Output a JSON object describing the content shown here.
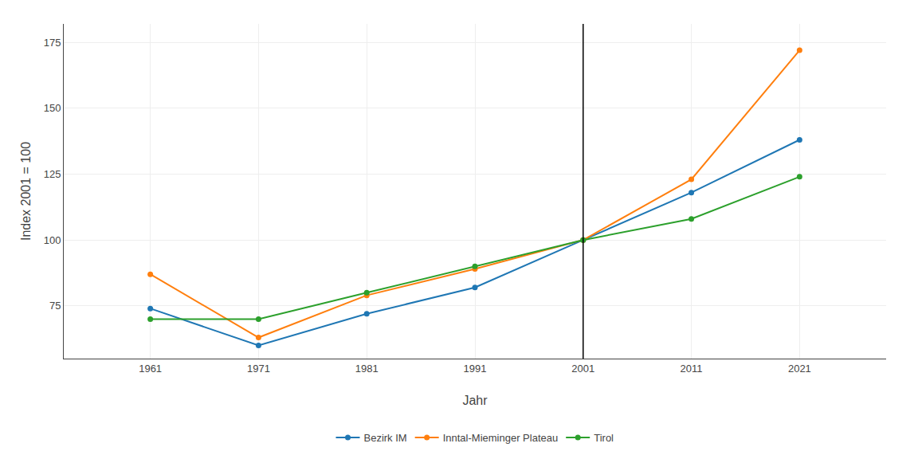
{
  "chart_data": {
    "type": "line",
    "x": [
      1961,
      1971,
      1981,
      1991,
      2001,
      2011,
      2021
    ],
    "series": [
      {
        "name": "Bezirk IM",
        "values": [
          74,
          60,
          72,
          82,
          100,
          118,
          138
        ]
      },
      {
        "name": "Inntal-Mieminger Plateau",
        "values": [
          87,
          63,
          79,
          89,
          100,
          123,
          172
        ]
      },
      {
        "name": "Tirol",
        "values": [
          70,
          70,
          80,
          90,
          100,
          108,
          124
        ]
      }
    ],
    "xlabel": "Jahr",
    "ylabel": "Index 2001 = 100",
    "xlim": [
      1953,
      2029
    ],
    "xticks": [
      1961,
      1971,
      1981,
      1991,
      2001,
      2011,
      2021
    ],
    "ylim": [
      55,
      182
    ],
    "yticks": [
      75,
      100,
      125,
      150,
      175
    ],
    "vline": 2001,
    "grid": true,
    "legend": "bottom",
    "marker": "circle"
  }
}
